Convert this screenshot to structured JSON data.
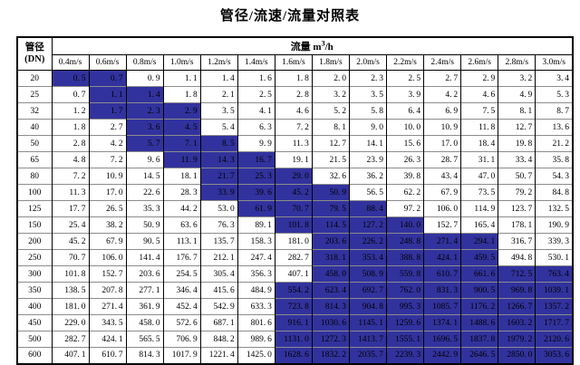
{
  "title": "管径/流速/流量对照表",
  "colors": {
    "highlight": "#32329e",
    "grid_horizontal": "#7f7f7f",
    "grid_vertical": "#000000",
    "outer_border": "#000000",
    "text": "#000000",
    "background": "#ffffff"
  },
  "table": {
    "dn_header": {
      "line1": "管径",
      "line2": "(DN)"
    },
    "flow_header": {
      "label": "流量 m",
      "sup": "3",
      "suffix": "/h"
    },
    "velocity_headers": [
      "0.4m/s",
      "0.6m/s",
      "0.8m/s",
      "1.0m/s",
      "1.2m/s",
      "1.4m/s",
      "1.6m/s",
      "1.8m/s",
      "2.0m/s",
      "2.2m/s",
      "2.4m/s",
      "2.6m/s",
      "2.8m/s",
      "3.0m/s"
    ],
    "rows": [
      {
        "dn": "20",
        "values": [
          "0.5",
          "0.7",
          "0.9",
          "1.1",
          "1.4",
          "1.6",
          "1.8",
          "2.0",
          "2.3",
          "2.5",
          "2.7",
          "2.9",
          "3.2",
          "3.4"
        ],
        "highlight": [
          0,
          1
        ]
      },
      {
        "dn": "25",
        "values": [
          "0.7",
          "1.1",
          "1.4",
          "1.8",
          "2.1",
          "2.5",
          "2.8",
          "3.2",
          "3.5",
          "3.9",
          "4.2",
          "4.6",
          "4.9",
          "5.3"
        ],
        "highlight": [
          1,
          2
        ]
      },
      {
        "dn": "32",
        "values": [
          "1.2",
          "1.7",
          "2.3",
          "2.9",
          "3.5",
          "4.1",
          "4.6",
          "5.2",
          "5.8",
          "6.4",
          "6.9",
          "7.5",
          "8.1",
          "8.7"
        ],
        "highlight": [
          1,
          3
        ]
      },
      {
        "dn": "40",
        "values": [
          "1.8",
          "2.7",
          "3.6",
          "4.5",
          "5.4",
          "6.3",
          "7.2",
          "8.1",
          "9.0",
          "10.0",
          "10.9",
          "11.8",
          "12.7",
          "13.6"
        ],
        "highlight": [
          2,
          3
        ]
      },
      {
        "dn": "50",
        "values": [
          "2.8",
          "4.2",
          "5.7",
          "7.1",
          "8.5",
          "9.9",
          "11.3",
          "12.7",
          "14.1",
          "15.6",
          "17.0",
          "18.4",
          "19.8",
          "21.2"
        ],
        "highlight": [
          2,
          4
        ]
      },
      {
        "dn": "65",
        "values": [
          "4.8",
          "7.2",
          "9.6",
          "11.9",
          "14.3",
          "16.7",
          "19.1",
          "21.5",
          "23.9",
          "26.3",
          "28.7",
          "31.1",
          "33.4",
          "35.8"
        ],
        "highlight": [
          3,
          5
        ]
      },
      {
        "dn": "80",
        "values": [
          "7.2",
          "10.9",
          "14.5",
          "18.1",
          "21.7",
          "25.3",
          "29.0",
          "32.6",
          "36.2",
          "39.8",
          "43.4",
          "47.0",
          "50.7",
          "54.3"
        ],
        "highlight": [
          4,
          6
        ]
      },
      {
        "dn": "100",
        "values": [
          "11.3",
          "17.0",
          "22.6",
          "28.3",
          "33.9",
          "39.6",
          "45.2",
          "50.9",
          "56.5",
          "62.2",
          "67.9",
          "73.5",
          "79.2",
          "84.8"
        ],
        "highlight": [
          4,
          7
        ]
      },
      {
        "dn": "125",
        "values": [
          "17.7",
          "26.5",
          "35.3",
          "44.2",
          "53.0",
          "61.9",
          "70.7",
          "79.5",
          "88.4",
          "97.2",
          "106.0",
          "114.9",
          "123.7",
          "132.5"
        ],
        "highlight": [
          5,
          8
        ]
      },
      {
        "dn": "150",
        "values": [
          "25.4",
          "38.2",
          "50.9",
          "63.6",
          "76.3",
          "89.1",
          "101.8",
          "114.5",
          "127.2",
          "140.0",
          "152.7",
          "165.4",
          "178.1",
          "190.9"
        ],
        "highlight": [
          6,
          9
        ]
      },
      {
        "dn": "200",
        "values": [
          "45.2",
          "67.9",
          "90.5",
          "113.1",
          "135.7",
          "158.3",
          "181.0",
          "203.6",
          "226.2",
          "248.8",
          "271.4",
          "294.1",
          "316.7",
          "339.3"
        ],
        "highlight": [
          7,
          11
        ]
      },
      {
        "dn": "250",
        "values": [
          "70.7",
          "106.0",
          "141.4",
          "176.7",
          "212.1",
          "247.4",
          "282.7",
          "318.1",
          "353.4",
          "388.8",
          "424.1",
          "459.5",
          "494.8",
          "530.1"
        ],
        "highlight": [
          7,
          11
        ]
      },
      {
        "dn": "300",
        "values": [
          "101.8",
          "152.7",
          "203.6",
          "254.5",
          "305.4",
          "356.3",
          "407.1",
          "458.0",
          "508.9",
          "559.8",
          "610.7",
          "661.6",
          "712.5",
          "763.4"
        ],
        "highlight": [
          7,
          13
        ]
      },
      {
        "dn": "350",
        "values": [
          "138.5",
          "207.8",
          "277.1",
          "346.4",
          "415.6",
          "484.9",
          "554.2",
          "623.4",
          "692.7",
          "762.0",
          "831.3",
          "900.5",
          "969.8",
          "1039.1"
        ],
        "highlight": [
          6,
          13
        ]
      },
      {
        "dn": "400",
        "values": [
          "181.0",
          "271.4",
          "361.9",
          "452.4",
          "542.9",
          "633.3",
          "723.8",
          "814.3",
          "904.8",
          "995.3",
          "1085.7",
          "1176.2",
          "1266.7",
          "1357.2"
        ],
        "highlight": [
          6,
          13
        ]
      },
      {
        "dn": "450",
        "values": [
          "229.0",
          "343.5",
          "458.0",
          "572.6",
          "687.1",
          "801.6",
          "916.1",
          "1030.6",
          "1145.1",
          "1259.6",
          "1374.1",
          "1488.6",
          "1603.2",
          "1717.7"
        ],
        "highlight": [
          6,
          13
        ]
      },
      {
        "dn": "500",
        "values": [
          "282.7",
          "424.1",
          "565.5",
          "706.9",
          "848.2",
          "989.6",
          "1131.0",
          "1272.3",
          "1413.7",
          "1555.1",
          "1696.5",
          "1837.8",
          "1979.2",
          "2120.6"
        ],
        "highlight": [
          6,
          13
        ]
      },
      {
        "dn": "600",
        "values": [
          "407.1",
          "610.7",
          "814.3",
          "1017.9",
          "1221.4",
          "1425.0",
          "1628.6",
          "1832.2",
          "2035.7",
          "2239.3",
          "2442.9",
          "2646.5",
          "2850.0",
          "3053.6"
        ],
        "highlight": [
          6,
          13
        ]
      }
    ]
  }
}
